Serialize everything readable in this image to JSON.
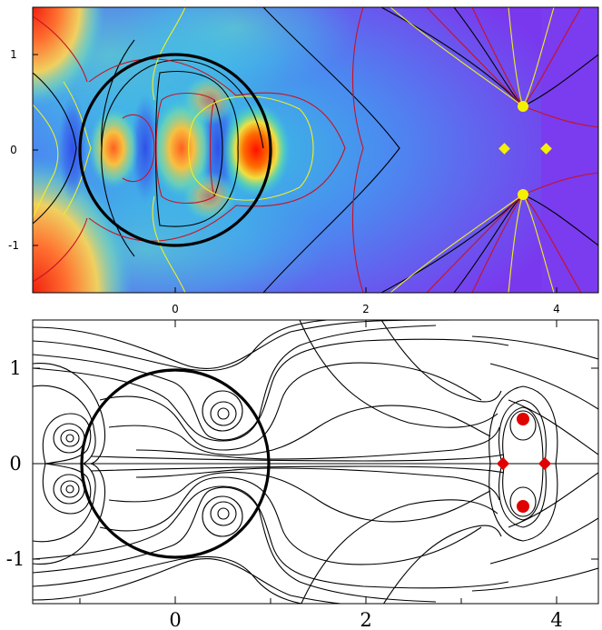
{
  "figure": {
    "top_panel": {
      "x_ticks": [
        "0",
        "2",
        "4"
      ],
      "y_ticks": [
        "1",
        "0",
        "-1"
      ],
      "colors": {
        "contour_red": "#cc1020",
        "contour_yellow": "#f0f020",
        "contour_black": "#000000",
        "marker": "#f5f000"
      }
    },
    "bottom_panel": {
      "x_ticks": [
        "0",
        "2",
        "4"
      ],
      "y_ticks": [
        "1",
        "0",
        "-1"
      ],
      "colors": {
        "marker": "#e00000",
        "streamline": "#000000"
      }
    }
  }
}
